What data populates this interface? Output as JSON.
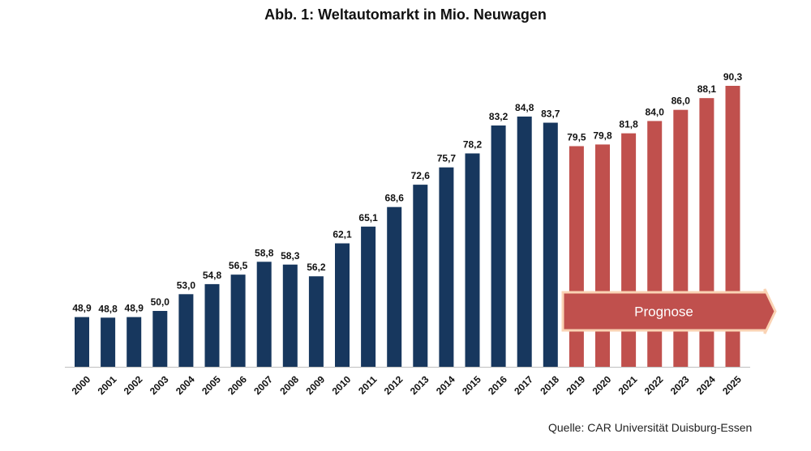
{
  "chart_data": {
    "type": "bar",
    "title": "Abb. 1: Weltautomarkt in Mio. Neuwagen",
    "source": "Quelle: CAR Universität Duisburg-Essen",
    "categories": [
      "2000",
      "2001",
      "2002",
      "2003",
      "2004",
      "2005",
      "2006",
      "2007",
      "2008",
      "2009",
      "2010",
      "2011",
      "2012",
      "2013",
      "2014",
      "2015",
      "2016",
      "2017",
      "2018",
      "2019",
      "2020",
      "2021",
      "2022",
      "2023",
      "2024",
      "2025"
    ],
    "values": [
      48.9,
      48.8,
      48.9,
      50.0,
      53.0,
      54.8,
      56.5,
      58.8,
      58.3,
      56.2,
      62.1,
      65.1,
      68.6,
      72.6,
      75.7,
      78.2,
      83.2,
      84.8,
      83.7,
      79.5,
      79.8,
      81.8,
      84.0,
      86.0,
      88.1,
      90.3
    ],
    "value_labels": [
      "48,9",
      "48,8",
      "48,9",
      "50,0",
      "53,0",
      "54,8",
      "56,5",
      "58,8",
      "58,3",
      "56,2",
      "62,1",
      "65,1",
      "68,6",
      "72,6",
      "75,7",
      "78,2",
      "83,2",
      "84,8",
      "83,7",
      "79,5",
      "79,8",
      "81,8",
      "84,0",
      "86,0",
      "88,1",
      "90,3"
    ],
    "forecast_from": "2019",
    "forecast_label": "Prognose",
    "ylim": [
      40,
      95
    ],
    "grid": false,
    "colors": {
      "actual": "#17375E",
      "forecast": "#C0504D",
      "arrow_border": "#FAD3B4"
    }
  }
}
